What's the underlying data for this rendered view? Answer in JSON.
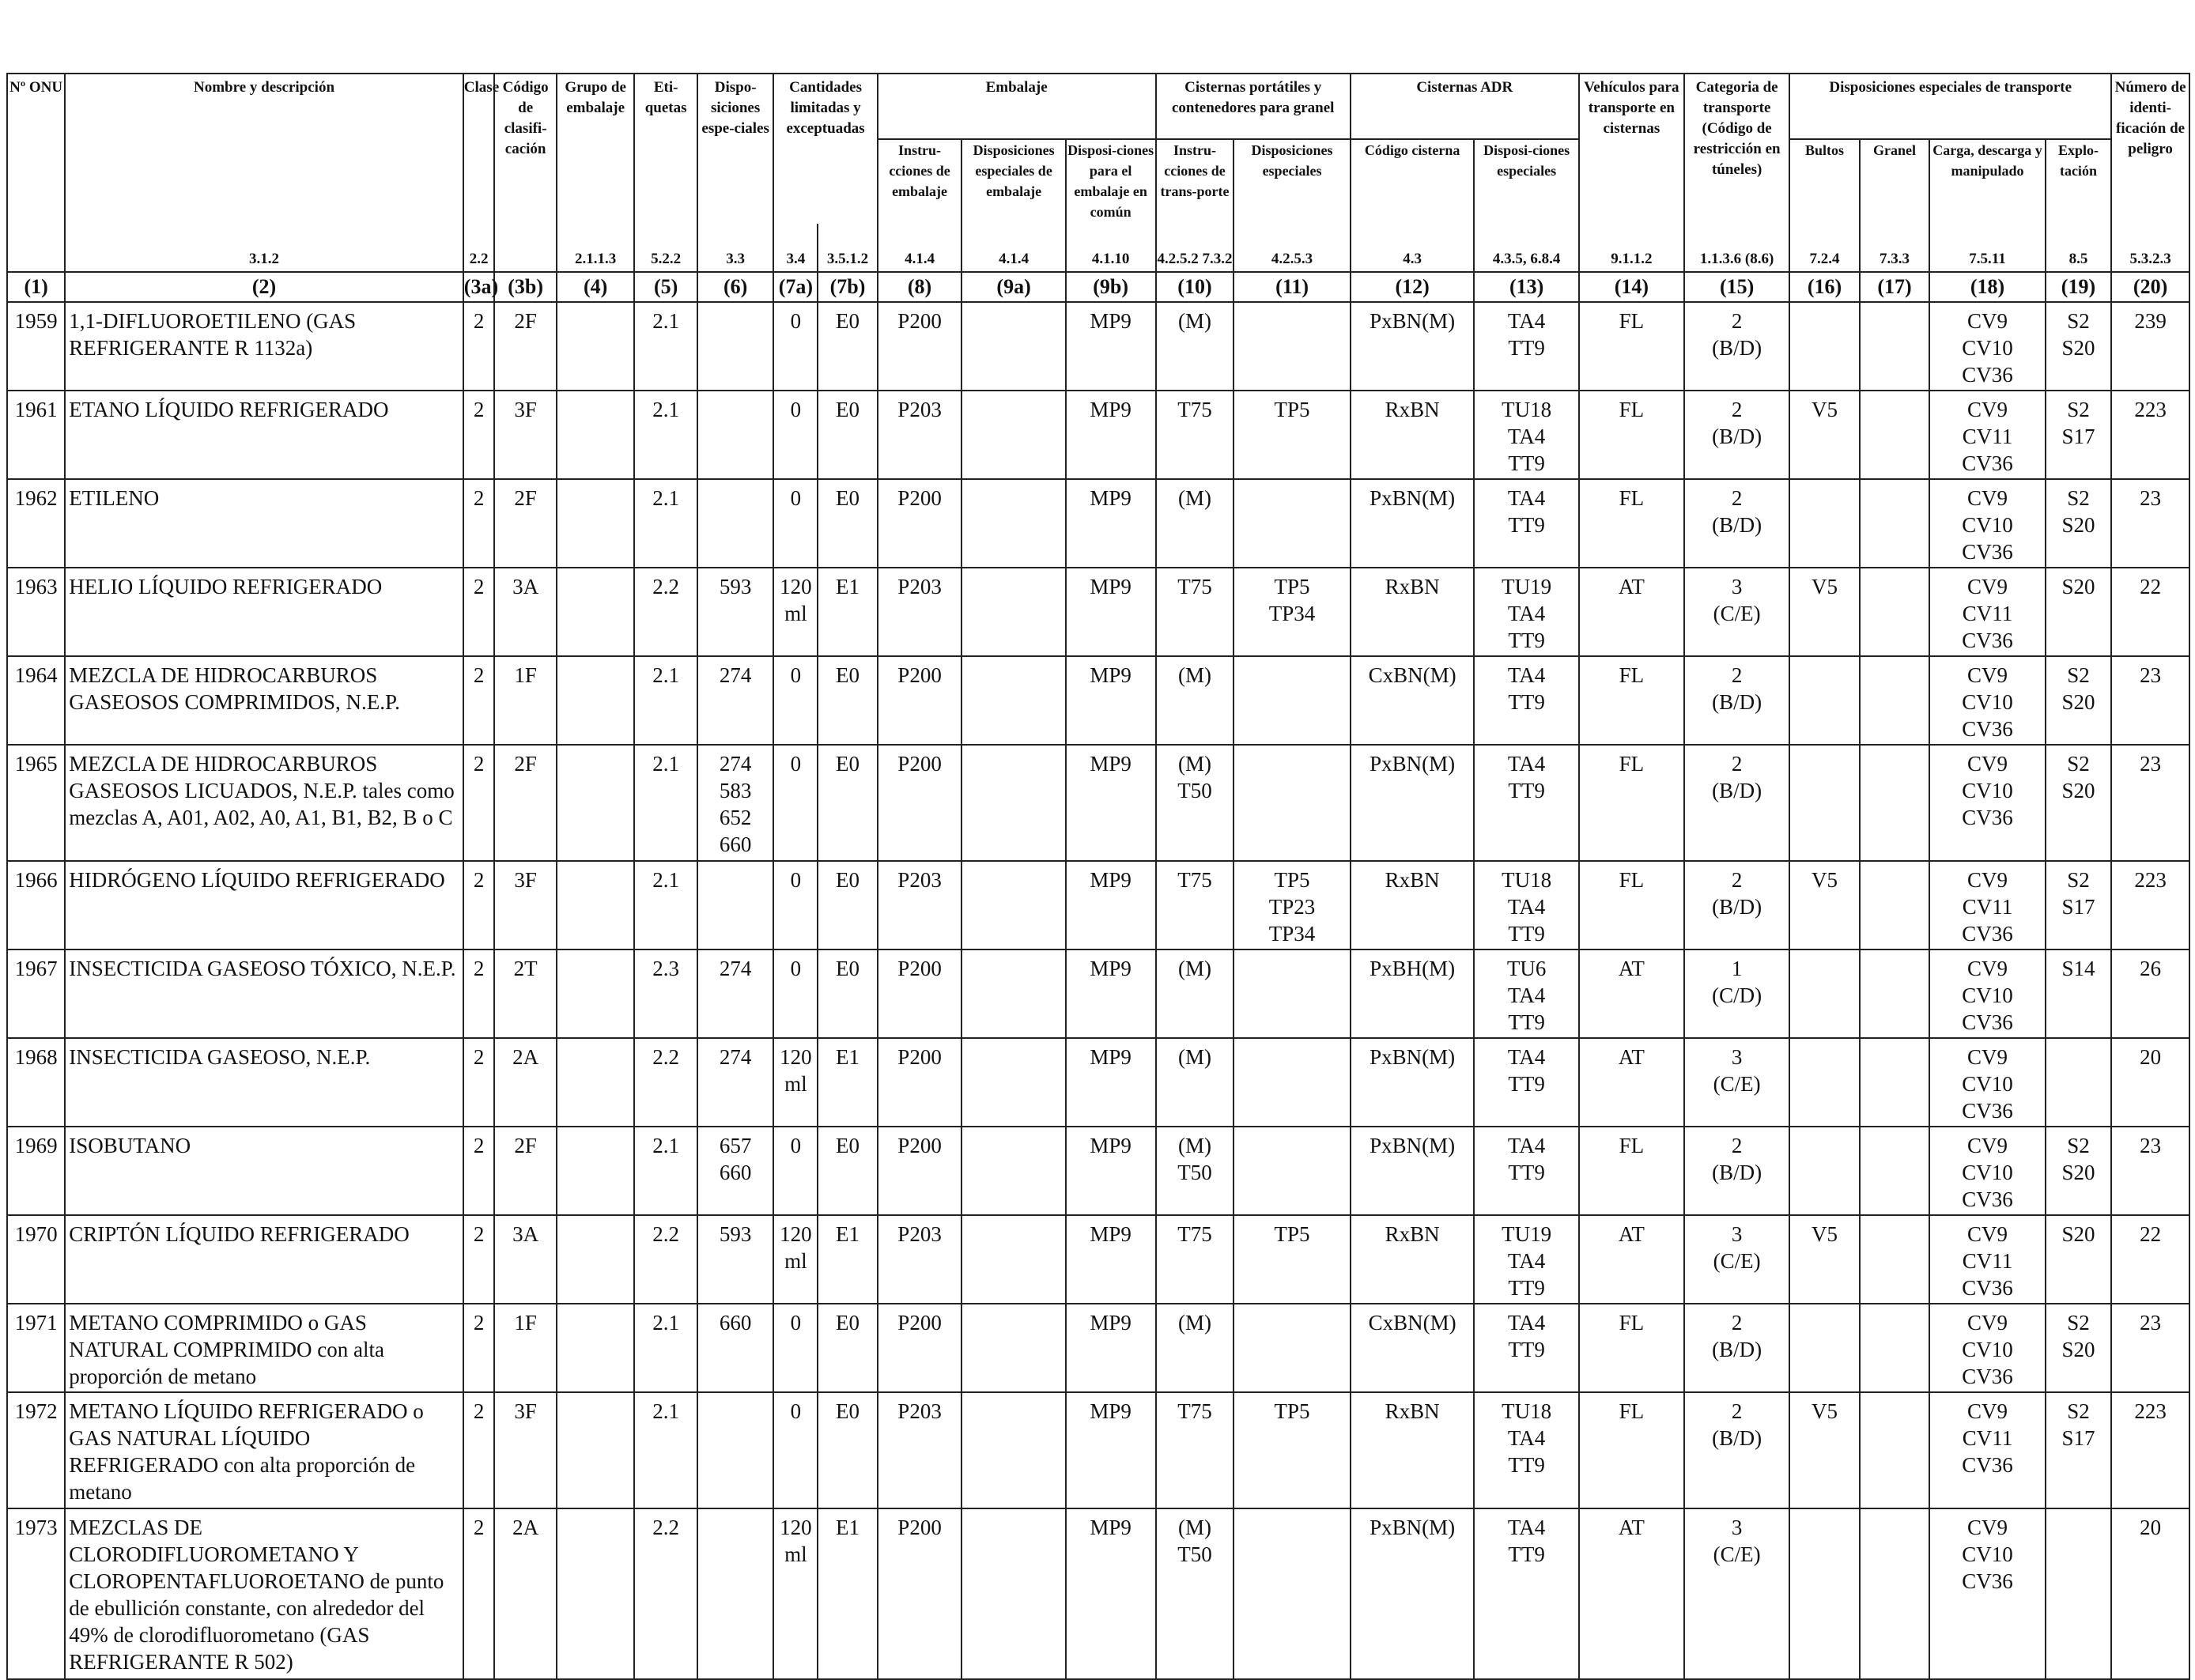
{
  "headers": {
    "col1": "Nº ONU",
    "col2": "Nombre y descripción",
    "col3a": "Clase",
    "col3b": "Código de clasifi-cación",
    "col4": "Grupo de embalaje",
    "col5": "Eti-quetas",
    "col6": "Dispo-siciones espe-ciales",
    "col7": "Cantidades limitadas y exceptuadas",
    "embalaje": "Embalaje",
    "col8": "Instru-cciones de embalaje",
    "col9a": "Disposiciones especiales de embalaje",
    "col9b": "Disposi-ciones para el embalaje en común",
    "cisternas_port": "Cisternas portátiles y contenedores para granel",
    "col10": "Instru-cciones de trans-porte",
    "col11": "Disposiciones especiales",
    "cisternas_adr": "Cisternas ADR",
    "col12": "Código cisterna",
    "col13": "Disposi-ciones especiales",
    "col14": "Vehículos para transporte en cisternas",
    "col15": "Categoria de transporte (Código de restricción en túneles)",
    "disp_transporte": "Disposiciones especiales de transporte",
    "col16": "Bultos",
    "col17": "Granel",
    "col18": "Carga, descarga y manipulado",
    "col19": "Explo-tación",
    "col20": "Número de identi-ficación de peligro"
  },
  "sections": {
    "col2": "3.1.2",
    "col3a": "2.2",
    "col4": "2.1.1.3",
    "col5": "5.2.2",
    "col6": "3.3",
    "col7a": "3.4",
    "col7b": "3.5.1.2",
    "col8": "4.1.4",
    "col9a": "4.1.4",
    "col9b": "4.1.10",
    "col10": "4.2.5.2 7.3.2",
    "col11": "4.2.5.3",
    "col12": "4.3",
    "col13": "4.3.5, 6.8.4",
    "col14": "9.1.1.2",
    "col15": "1.1.3.6 (8.6)",
    "col16": "7.2.4",
    "col17": "7.3.3",
    "col18": "7.5.11",
    "col19": "8.5",
    "col20": "5.3.2.3"
  },
  "numbers": [
    "(1)",
    "(2)",
    "(3a)",
    "(3b)",
    "(4)",
    "(5)",
    "(6)",
    "(7a)",
    "(7b)",
    "(8)",
    "(9a)",
    "(9b)",
    "(10)",
    "(11)",
    "(12)",
    "(13)",
    "(14)",
    "(15)",
    "(16)",
    "(17)",
    "(18)",
    "(19)",
    "(20)"
  ],
  "rows": [
    {
      "onu": "1959",
      "name": "1,1-DIFLUOROETILENO (GAS REFRIGERANTE R 1132a)",
      "clase": "2",
      "codigo": "2F",
      "grupo": "",
      "etiquetas": "2.1",
      "disp": "",
      "lq": "0",
      "eq": "E0",
      "instr": "P200",
      "disp_emb": "",
      "mp": "MP9",
      "cist_instr": "(M)",
      "cist_disp": "",
      "cod_cist": "PxBN(M)",
      "cist_adr_disp": "TA4\nTT9",
      "vehiculos": "FL",
      "categoria": "2\n(B/D)",
      "bultos": "",
      "granel": "",
      "carga": "CV9\nCV10\nCV36",
      "explot": "S2\nS20",
      "peligro": "239"
    },
    {
      "onu": "1961",
      "name": "ETANO LÍQUIDO REFRIGERADO",
      "clase": "2",
      "codigo": "3F",
      "grupo": "",
      "etiquetas": "2.1",
      "disp": "",
      "lq": "0",
      "eq": "E0",
      "instr": "P203",
      "disp_emb": "",
      "mp": "MP9",
      "cist_instr": "T75",
      "cist_disp": "TP5",
      "cod_cist": "RxBN",
      "cist_adr_disp": "TU18\nTA4\nTT9",
      "vehiculos": "FL",
      "categoria": "2\n(B/D)",
      "bultos": "V5",
      "granel": "",
      "carga": "CV9\nCV11\nCV36",
      "explot": "S2\nS17",
      "peligro": "223"
    },
    {
      "onu": "1962",
      "name": "ETILENO",
      "clase": "2",
      "codigo": "2F",
      "grupo": "",
      "etiquetas": "2.1",
      "disp": "",
      "lq": "0",
      "eq": "E0",
      "instr": "P200",
      "disp_emb": "",
      "mp": "MP9",
      "cist_instr": "(M)",
      "cist_disp": "",
      "cod_cist": "PxBN(M)",
      "cist_adr_disp": "TA4\nTT9",
      "vehiculos": "FL",
      "categoria": "2\n(B/D)",
      "bultos": "",
      "granel": "",
      "carga": "CV9\nCV10\nCV36",
      "explot": "S2\nS20",
      "peligro": "23"
    },
    {
      "onu": "1963",
      "name": "HELIO LÍQUIDO REFRIGERADO",
      "clase": "2",
      "codigo": "3A",
      "grupo": "",
      "etiquetas": "2.2",
      "disp": "593",
      "lq": "120\nml",
      "eq": "E1",
      "instr": "P203",
      "disp_emb": "",
      "mp": "MP9",
      "cist_instr": "T75",
      "cist_disp": "TP5\nTP34",
      "cod_cist": "RxBN",
      "cist_adr_disp": "TU19\nTA4\nTT9",
      "vehiculos": "AT",
      "categoria": "3\n(C/E)",
      "bultos": "V5",
      "granel": "",
      "carga": "CV9\nCV11\nCV36",
      "explot": "S20",
      "peligro": "22"
    },
    {
      "onu": "1964",
      "name": "MEZCLA DE HIDROCARBUROS GASEOSOS COMPRIMIDOS, N.E.P.",
      "clase": "2",
      "codigo": "1F",
      "grupo": "",
      "etiquetas": "2.1",
      "disp": "274",
      "lq": "0",
      "eq": "E0",
      "instr": "P200",
      "disp_emb": "",
      "mp": "MP9",
      "cist_instr": "(M)",
      "cist_disp": "",
      "cod_cist": "CxBN(M)",
      "cist_adr_disp": "TA4\nTT9",
      "vehiculos": "FL",
      "categoria": "2\n(B/D)",
      "bultos": "",
      "granel": "",
      "carga": "CV9\nCV10\nCV36",
      "explot": "S2\nS20",
      "peligro": "23"
    },
    {
      "onu": "1965",
      "name": "MEZCLA DE HIDROCARBUROS GASEOSOS LICUADOS, N.E.P. tales como mezclas A, A01, A02, A0, A1, B1, B2, B o C",
      "clase": "2",
      "codigo": "2F",
      "grupo": "",
      "etiquetas": "2.1",
      "disp": "274\n583\n652\n660",
      "lq": "0",
      "eq": "E0",
      "instr": "P200",
      "disp_emb": "",
      "mp": "MP9",
      "cist_instr": "(M)\nT50",
      "cist_disp": "",
      "cod_cist": "PxBN(M)",
      "cist_adr_disp": "TA4\nTT9",
      "vehiculos": "FL",
      "categoria": "2\n(B/D)",
      "bultos": "",
      "granel": "",
      "carga": "CV9\nCV10\nCV36",
      "explot": "S2\nS20",
      "peligro": "23"
    },
    {
      "onu": "1966",
      "name": "HIDRÓGENO LÍQUIDO REFRIGERADO",
      "clase": "2",
      "codigo": "3F",
      "grupo": "",
      "etiquetas": "2.1",
      "disp": "",
      "lq": "0",
      "eq": "E0",
      "instr": "P203",
      "disp_emb": "",
      "mp": "MP9",
      "cist_instr": "T75",
      "cist_disp": "TP5\nTP23\nTP34",
      "cod_cist": "RxBN",
      "cist_adr_disp": "TU18\nTA4\nTT9",
      "vehiculos": "FL",
      "categoria": "2\n(B/D)",
      "bultos": "V5",
      "granel": "",
      "carga": "CV9\nCV11\nCV36",
      "explot": "S2\nS17",
      "peligro": "223"
    },
    {
      "onu": "1967",
      "name": "INSECTICIDA GASEOSO TÓXICO, N.E.P.",
      "clase": "2",
      "codigo": "2T",
      "grupo": "",
      "etiquetas": "2.3",
      "disp": "274",
      "lq": "0",
      "eq": "E0",
      "instr": "P200",
      "disp_emb": "",
      "mp": "MP9",
      "cist_instr": "(M)",
      "cist_disp": "",
      "cod_cist": "PxBH(M)",
      "cist_adr_disp": "TU6\nTA4\nTT9",
      "vehiculos": "AT",
      "categoria": "1\n(C/D)",
      "bultos": "",
      "granel": "",
      "carga": "CV9\nCV10\nCV36",
      "explot": "S14",
      "peligro": "26"
    },
    {
      "onu": "1968",
      "name": "INSECTICIDA GASEOSO, N.E.P.",
      "clase": "2",
      "codigo": "2A",
      "grupo": "",
      "etiquetas": "2.2",
      "disp": "274",
      "lq": "120\nml",
      "eq": "E1",
      "instr": "P200",
      "disp_emb": "",
      "mp": "MP9",
      "cist_instr": "(M)",
      "cist_disp": "",
      "cod_cist": "PxBN(M)",
      "cist_adr_disp": "TA4\nTT9",
      "vehiculos": "AT",
      "categoria": "3\n(C/E)",
      "bultos": "",
      "granel": "",
      "carga": "CV9\nCV10\nCV36",
      "explot": "",
      "peligro": "20"
    },
    {
      "onu": "1969",
      "name": "ISOBUTANO",
      "clase": "2",
      "codigo": "2F",
      "grupo": "",
      "etiquetas": "2.1",
      "disp": "657\n660",
      "lq": "0",
      "eq": "E0",
      "instr": "P200",
      "disp_emb": "",
      "mp": "MP9",
      "cist_instr": "(M)\nT50",
      "cist_disp": "",
      "cod_cist": "PxBN(M)",
      "cist_adr_disp": "TA4\nTT9",
      "vehiculos": "FL",
      "categoria": "2\n(B/D)",
      "bultos": "",
      "granel": "",
      "carga": "CV9\nCV10\nCV36",
      "explot": "S2\nS20",
      "peligro": "23"
    },
    {
      "onu": "1970",
      "name": "CRIPTÓN LÍQUIDO REFRIGERADO",
      "clase": "2",
      "codigo": "3A",
      "grupo": "",
      "etiquetas": "2.2",
      "disp": "593",
      "lq": "120\nml",
      "eq": "E1",
      "instr": "P203",
      "disp_emb": "",
      "mp": "MP9",
      "cist_instr": "T75",
      "cist_disp": "TP5",
      "cod_cist": "RxBN",
      "cist_adr_disp": "TU19\nTA4\nTT9",
      "vehiculos": "AT",
      "categoria": "3\n(C/E)",
      "bultos": "V5",
      "granel": "",
      "carga": "CV9\nCV11\nCV36",
      "explot": "S20",
      "peligro": "22"
    },
    {
      "onu": "1971",
      "name": "METANO COMPRIMIDO o GAS NATURAL COMPRIMIDO con alta proporción de metano",
      "clase": "2",
      "codigo": "1F",
      "grupo": "",
      "etiquetas": "2.1",
      "disp": "660",
      "lq": "0",
      "eq": "E0",
      "instr": "P200",
      "disp_emb": "",
      "mp": "MP9",
      "cist_instr": "(M)",
      "cist_disp": "",
      "cod_cist": "CxBN(M)",
      "cist_adr_disp": "TA4\nTT9",
      "vehiculos": "FL",
      "categoria": "2\n(B/D)",
      "bultos": "",
      "granel": "",
      "carga": "CV9\nCV10\nCV36",
      "explot": "S2\nS20",
      "peligro": "23"
    },
    {
      "onu": "1972",
      "name": "METANO LÍQUIDO REFRIGERADO o GAS NATURAL LÍQUIDO REFRIGERADO con alta proporción de metano",
      "clase": "2",
      "codigo": "3F",
      "grupo": "",
      "etiquetas": "2.1",
      "disp": "",
      "lq": "0",
      "eq": "E0",
      "instr": "P203",
      "disp_emb": "",
      "mp": "MP9",
      "cist_instr": "T75",
      "cist_disp": "TP5",
      "cod_cist": "RxBN",
      "cist_adr_disp": "TU18\nTA4\nTT9",
      "vehiculos": "FL",
      "categoria": "2\n(B/D)",
      "bultos": "V5",
      "granel": "",
      "carga": "CV9\nCV11\nCV36",
      "explot": "S2\nS17",
      "peligro": "223"
    },
    {
      "onu": "1973",
      "name": "MEZCLAS DE CLORODIFLUOROMETANO Y CLOROPENTAFLUOROETANO de punto de ebullición constante, con alrededor del 49% de clorodifluorometano (GAS REFRIGERANTE R 502)",
      "clase": "2",
      "codigo": "2A",
      "grupo": "",
      "etiquetas": "2.2",
      "disp": "",
      "lq": "120\nml",
      "eq": "E1",
      "instr": "P200",
      "disp_emb": "",
      "mp": "MP9",
      "cist_instr": "(M)\nT50",
      "cist_disp": "",
      "cod_cist": "PxBN(M)",
      "cist_adr_disp": "TA4\nTT9",
      "vehiculos": "AT",
      "categoria": "3\n(C/E)",
      "bultos": "",
      "granel": "",
      "carga": "CV9\nCV10\nCV36",
      "explot": "",
      "peligro": "20"
    }
  ]
}
